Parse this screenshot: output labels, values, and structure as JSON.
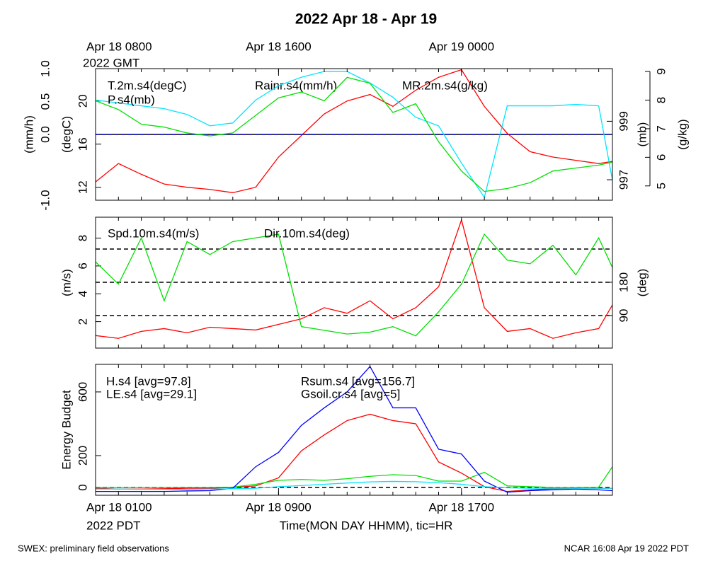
{
  "title": "2022 Apr 18 - Apr 19",
  "footer_left": "SWEX: preliminary field observations",
  "footer_right": "NCAR 16:08 Apr 19 2022 PDT",
  "chart_data": [
    {
      "type": "line",
      "x": [
        0,
        1,
        2,
        3,
        4,
        5,
        6,
        7,
        8,
        9,
        10,
        11,
        12,
        13,
        14,
        15,
        16,
        17,
        18,
        19,
        20,
        21,
        22,
        22.6
      ],
      "xlim": [
        0,
        22.6
      ],
      "xticks_minor": [
        0,
        1,
        2,
        3,
        4,
        5,
        6,
        7,
        8,
        9,
        10,
        11,
        12,
        13,
        14,
        15,
        16,
        17,
        18,
        19,
        20,
        21,
        22
      ],
      "top_xticks": [
        {
          "value": 0,
          "label": "Apr 18 0800"
        },
        {
          "value": 8,
          "label": "Apr 18 1600"
        },
        {
          "value": 16,
          "label": "Apr 19 0000"
        }
      ],
      "top_xticks_sublabel": "2022 GMT",
      "ylabel": "(degC)",
      "ylim": [
        10.8,
        23
      ],
      "yticks": [
        12,
        16,
        20
      ],
      "y2label": "(mb)",
      "y2lim": [
        996.3,
        1000.8
      ],
      "y2ticks": [
        997,
        999
      ],
      "y3label": "(mm/h)",
      "y3lim": [
        -1,
        1
      ],
      "y3ticks": [
        {
          "value": -1,
          "label": "-1.0"
        },
        {
          "value": 0,
          "label": "0.0"
        },
        {
          "value": 0.5,
          "label": "0.5"
        },
        {
          "value": 1,
          "label": "1.0"
        }
      ],
      "y3_reference_line": 0,
      "y4label": "(g/kg)",
      "y4lim": [
        4.5,
        9.1
      ],
      "y4ticks": [
        5,
        6,
        7,
        8,
        9
      ],
      "series": [
        {
          "name": "T.2m.s4(degC)",
          "color": "#ff0000",
          "axis": "y",
          "values": [
            12.5,
            14.2,
            13.2,
            12.3,
            12.0,
            11.8,
            11.5,
            12.0,
            14.8,
            16.8,
            18.8,
            20.0,
            20.6,
            19.5,
            21.0,
            22.2,
            22.9,
            19.5,
            17.0,
            15.3,
            14.8,
            14.5,
            14.2,
            14.4
          ]
        },
        {
          "name": "Rainr.s4(mm/h)",
          "color": "#0000ff",
          "axis": "y3",
          "dashed": true,
          "values": [
            0,
            0,
            0,
            0,
            0,
            0,
            0,
            0,
            0,
            0,
            0,
            0,
            0,
            0,
            0,
            0,
            0,
            0,
            0,
            0,
            0,
            0,
            0,
            0
          ]
        },
        {
          "name": "MR.2m.s4(g/kg)",
          "color": "#00e5ff",
          "axis": "y4",
          "values": [
            8.0,
            7.9,
            7.8,
            7.7,
            7.5,
            7.1,
            7.2,
            8.0,
            8.5,
            8.8,
            9.0,
            9.0,
            8.6,
            8.1,
            7.4,
            7.1,
            5.8,
            4.6,
            7.8,
            7.8,
            7.8,
            7.85,
            7.8,
            5.2
          ]
        },
        {
          "name": "P.s4(mb)",
          "color": "#00e000",
          "axis": "y2",
          "values": [
            999.7,
            999.4,
            998.9,
            998.8,
            998.6,
            998.5,
            998.6,
            999.2,
            999.8,
            1000.0,
            999.7,
            1000.5,
            1000.3,
            999.3,
            999.6,
            998.3,
            997.3,
            996.6,
            996.7,
            996.9,
            997.3,
            997.4,
            997.5,
            997.6
          ]
        }
      ]
    },
    {
      "type": "line",
      "x": [
        0,
        1,
        2,
        3,
        4,
        5,
        6,
        7,
        8,
        9,
        10,
        11,
        12,
        13,
        14,
        15,
        16,
        17,
        18,
        19,
        20,
        21,
        22,
        22.6
      ],
      "xlim": [
        0,
        22.6
      ],
      "xticks_minor": [
        0,
        1,
        2,
        3,
        4,
        5,
        6,
        7,
        8,
        9,
        10,
        11,
        12,
        13,
        14,
        15,
        16,
        17,
        18,
        19,
        20,
        21,
        22
      ],
      "ylabel": "(m/s)",
      "ylim": [
        0.1,
        9.5
      ],
      "yticks": [
        2,
        4,
        6,
        8
      ],
      "y2label": "(deg)",
      "y2lim": [
        2,
        356
      ],
      "y2ticks": [
        90,
        180
      ],
      "y2_dashed_lines": [
        90,
        180,
        270
      ],
      "series": [
        {
          "name": "Spd.10m.s4(m/s)",
          "color": "#ff0000",
          "axis": "y",
          "values": [
            1.0,
            0.8,
            1.3,
            1.5,
            1.2,
            1.6,
            1.5,
            1.4,
            1.8,
            2.2,
            3.0,
            2.6,
            3.5,
            2.2,
            3.0,
            4.5,
            9.3,
            3.0,
            1.3,
            1.5,
            0.8,
            1.2,
            1.5,
            3.2
          ]
        },
        {
          "name": "Dir.10m.s4(deg)",
          "color": "#00e000",
          "axis": "y2",
          "values": [
            235,
            175,
            300,
            130,
            290,
            255,
            290,
            300,
            310,
            60,
            50,
            40,
            45,
            60,
            35,
            100,
            175,
            310,
            240,
            230,
            280,
            200,
            300,
            220
          ]
        }
      ]
    },
    {
      "type": "line",
      "x": [
        0,
        1,
        2,
        3,
        4,
        5,
        6,
        7,
        8,
        9,
        10,
        11,
        12,
        13,
        14,
        15,
        16,
        17,
        18,
        19,
        20,
        21,
        22,
        22.6
      ],
      "xlim": [
        0,
        22.6
      ],
      "xticks_minor": [
        0,
        1,
        2,
        3,
        4,
        5,
        6,
        7,
        8,
        9,
        10,
        11,
        12,
        13,
        14,
        15,
        16,
        17,
        18,
        19,
        20,
        21,
        22
      ],
      "xticks": [
        {
          "value": 0,
          "label": "Apr 18 0100"
        },
        {
          "value": 8,
          "label": "Apr 18 0900"
        },
        {
          "value": 16,
          "label": "Apr 18 1700"
        }
      ],
      "xticks_sublabel": "2022 PDT",
      "xlabel": "Time(MON DAY HHMM), tic=HR",
      "ylabel": "Energy Budget",
      "ylim": [
        -49,
        773
      ],
      "yticks": [
        0,
        200,
        600
      ],
      "dashed_lines": [
        0
      ],
      "series": [
        {
          "name": "H.s4 [avg=97.8]",
          "color": "#ff0000",
          "axis": "y",
          "values": [
            -5,
            -10,
            -10,
            -8,
            -5,
            -5,
            0,
            10,
            60,
            230,
            330,
            420,
            460,
            420,
            400,
            160,
            90,
            5,
            -25,
            -15,
            -8,
            -5,
            -5,
            -5
          ]
        },
        {
          "name": "LE.s4 [avg=29.1]",
          "color": "#00e000",
          "axis": "y",
          "values": [
            0,
            0,
            0,
            0,
            0,
            0,
            2,
            20,
            45,
            50,
            45,
            55,
            70,
            80,
            75,
            40,
            40,
            95,
            10,
            5,
            0,
            0,
            2,
            130
          ]
        },
        {
          "name": "Rsum.s4 [avg=156.7]",
          "color": "#0000ff",
          "axis": "y",
          "values": [
            -25,
            -25,
            -25,
            -25,
            -22,
            -20,
            -5,
            130,
            220,
            390,
            500,
            600,
            760,
            500,
            500,
            240,
            210,
            40,
            -30,
            -20,
            -15,
            -10,
            -15,
            -20
          ]
        },
        {
          "name": "Gsoil.cr.s4 [avg=5]",
          "color": "#00e5ff",
          "axis": "y",
          "values": [
            -10,
            -10,
            -12,
            -12,
            -12,
            -10,
            -8,
            -5,
            5,
            12,
            20,
            28,
            35,
            38,
            36,
            30,
            20,
            5,
            -2,
            -5,
            -5,
            -5,
            -5,
            -5
          ]
        }
      ]
    }
  ]
}
